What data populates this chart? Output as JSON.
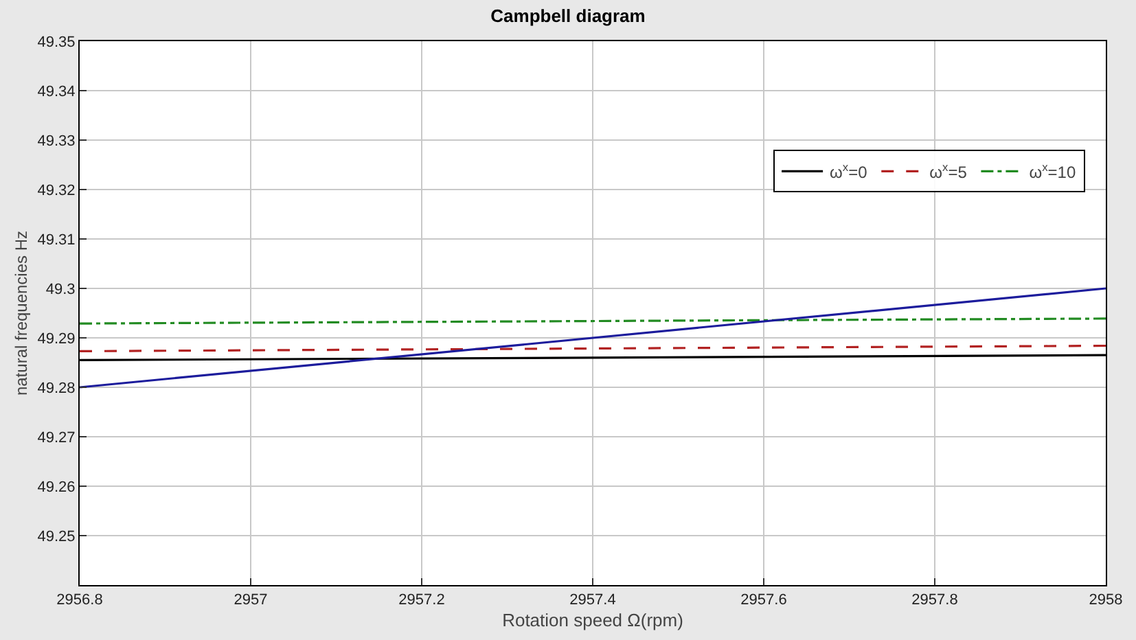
{
  "chart_data": {
    "type": "line",
    "title": "Campbell diagram",
    "xlabel": "Rotation speed Ω(rpm)",
    "ylabel": "natural frequencies Hz",
    "x": [
      2956.8,
      2958
    ],
    "series": [
      {
        "name": "ω$^{x}$=0",
        "color": "#000000",
        "line_style": "solid",
        "values": [
          49.2855,
          49.2865
        ]
      },
      {
        "name": "ω$^{x}$=5",
        "color": "#b22222",
        "line_style": "dashed",
        "values": [
          49.2873,
          49.2884
        ]
      },
      {
        "name": "ω$^{x}$=10",
        "color": "#228b22",
        "line_style": "dashdot",
        "values": [
          49.2929,
          49.2939
        ]
      },
      {
        "color": "#1c1c9c",
        "line_style": "solid",
        "values": [
          49.28,
          49.3
        ]
      }
    ],
    "xlim": [
      2956.8,
      2958
    ],
    "xticks": [
      2956.8,
      2957,
      2957.2,
      2957.4,
      2957.6,
      2957.8,
      2958
    ],
    "ylim": [
      49.24,
      49.35
    ],
    "yticks": [
      {
        "value": 49.24,
        "label": null
      },
      49.25,
      49.26,
      49.27,
      49.28,
      49.29,
      49.3,
      49.31,
      49.32,
      49.33,
      49.34,
      49.35
    ],
    "grid": true,
    "legend": "top right",
    "marker": "none"
  }
}
